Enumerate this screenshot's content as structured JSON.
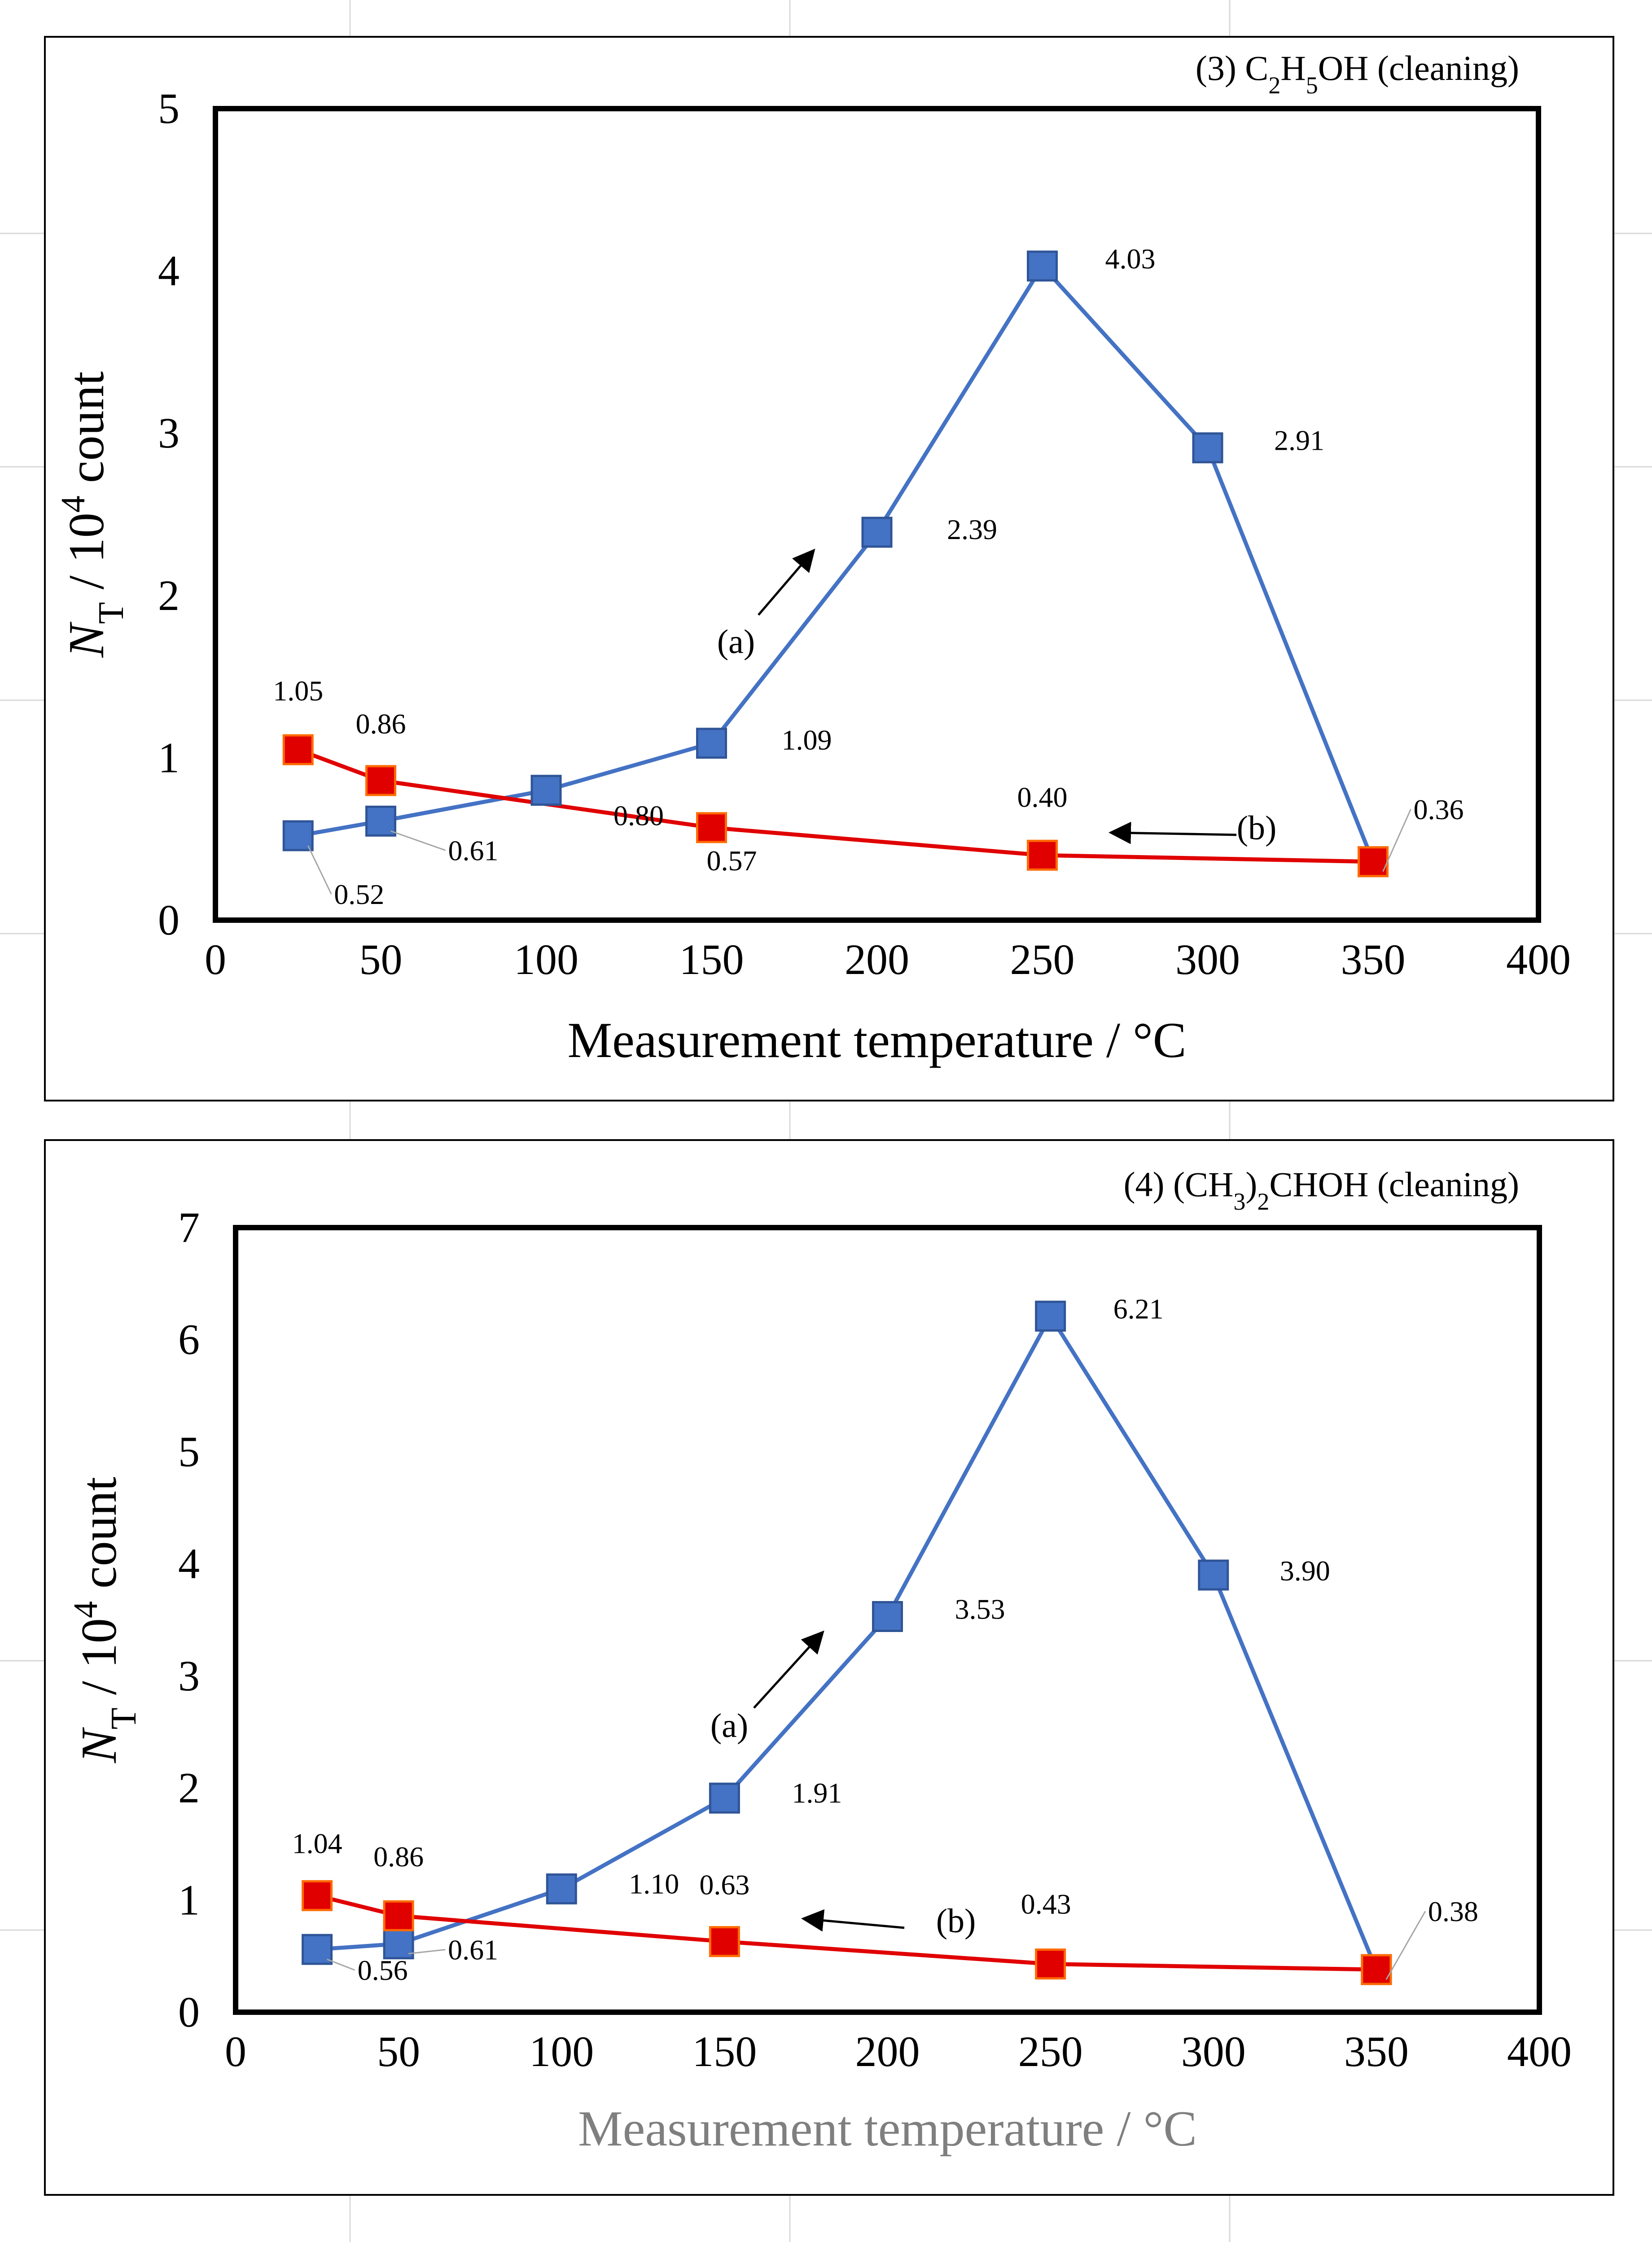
{
  "colors": {
    "series_a": "#4472C4",
    "series_b": "#E00000",
    "frame": "#000000",
    "page_grid": "#D9D9D9",
    "xlabel_bottom": "#7F7F7F"
  },
  "chart_data": [
    {
      "type": "line",
      "title_parts": [
        "(3) C",
        "2",
        "H",
        "5",
        "OH (cleaning)"
      ],
      "title": "(3) C2H5OH (cleaning)",
      "xlabel": "Measurement temperature / °C",
      "ylabel_parts": [
        "N",
        "T",
        " / 10",
        "4",
        " count"
      ],
      "ylabel": "NT / 10^4 count",
      "xlim": [
        0,
        400
      ],
      "ylim": [
        0,
        5
      ],
      "x_ticks": [
        0,
        50,
        100,
        150,
        200,
        250,
        300,
        350,
        400
      ],
      "y_ticks": [
        0,
        1,
        2,
        3,
        4,
        5
      ],
      "grid": false,
      "series": [
        {
          "name": "(a)",
          "x": [
            25,
            50,
            100,
            150,
            200,
            250,
            300,
            350
          ],
          "values": [
            0.52,
            0.61,
            0.8,
            1.09,
            2.39,
            4.03,
            2.91,
            0.36
          ],
          "labels": [
            "0.52",
            "0.61",
            "0.80",
            "1.09",
            "2.39",
            "4.03",
            "2.91",
            "0.36"
          ]
        },
        {
          "name": "(b)",
          "x": [
            25,
            50,
            150,
            250,
            350
          ],
          "values": [
            1.05,
            0.86,
            0.57,
            0.4,
            0.36
          ],
          "labels": [
            "1.05",
            "0.86",
            "0.57",
            "0.40",
            ""
          ]
        }
      ],
      "annotations": [
        "(a)",
        "(b)"
      ]
    },
    {
      "type": "line",
      "title_parts": [
        "(4) (CH",
        "3",
        ")",
        "2",
        "CHOH (cleaning)"
      ],
      "title": "(4) (CH3)2CHOH (cleaning)",
      "xlabel": "Measurement temperature / °C",
      "ylabel_parts": [
        "N",
        "T",
        " / 10",
        "4",
        " count"
      ],
      "ylabel": "NT / 10^4 count",
      "xlim": [
        0,
        400
      ],
      "ylim": [
        0,
        7
      ],
      "x_ticks": [
        0,
        50,
        100,
        150,
        200,
        250,
        300,
        350,
        400
      ],
      "y_ticks": [
        0,
        1,
        2,
        3,
        4,
        5,
        6,
        7
      ],
      "grid": false,
      "series": [
        {
          "name": "(a)",
          "x": [
            25,
            50,
            100,
            150,
            200,
            250,
            300,
            350
          ],
          "values": [
            0.56,
            0.61,
            1.1,
            1.91,
            3.53,
            6.21,
            3.9,
            0.38
          ],
          "labels": [
            "0.56",
            "0.61",
            "1.10",
            "1.91",
            "3.53",
            "6.21",
            "3.90",
            "0.38"
          ]
        },
        {
          "name": "(b)",
          "x": [
            25,
            50,
            150,
            250,
            350
          ],
          "values": [
            1.04,
            0.86,
            0.63,
            0.43,
            0.38
          ],
          "labels": [
            "1.04",
            "0.86",
            "0.63",
            "0.43",
            ""
          ]
        }
      ],
      "annotations": [
        "(a)",
        "(b)"
      ]
    }
  ]
}
